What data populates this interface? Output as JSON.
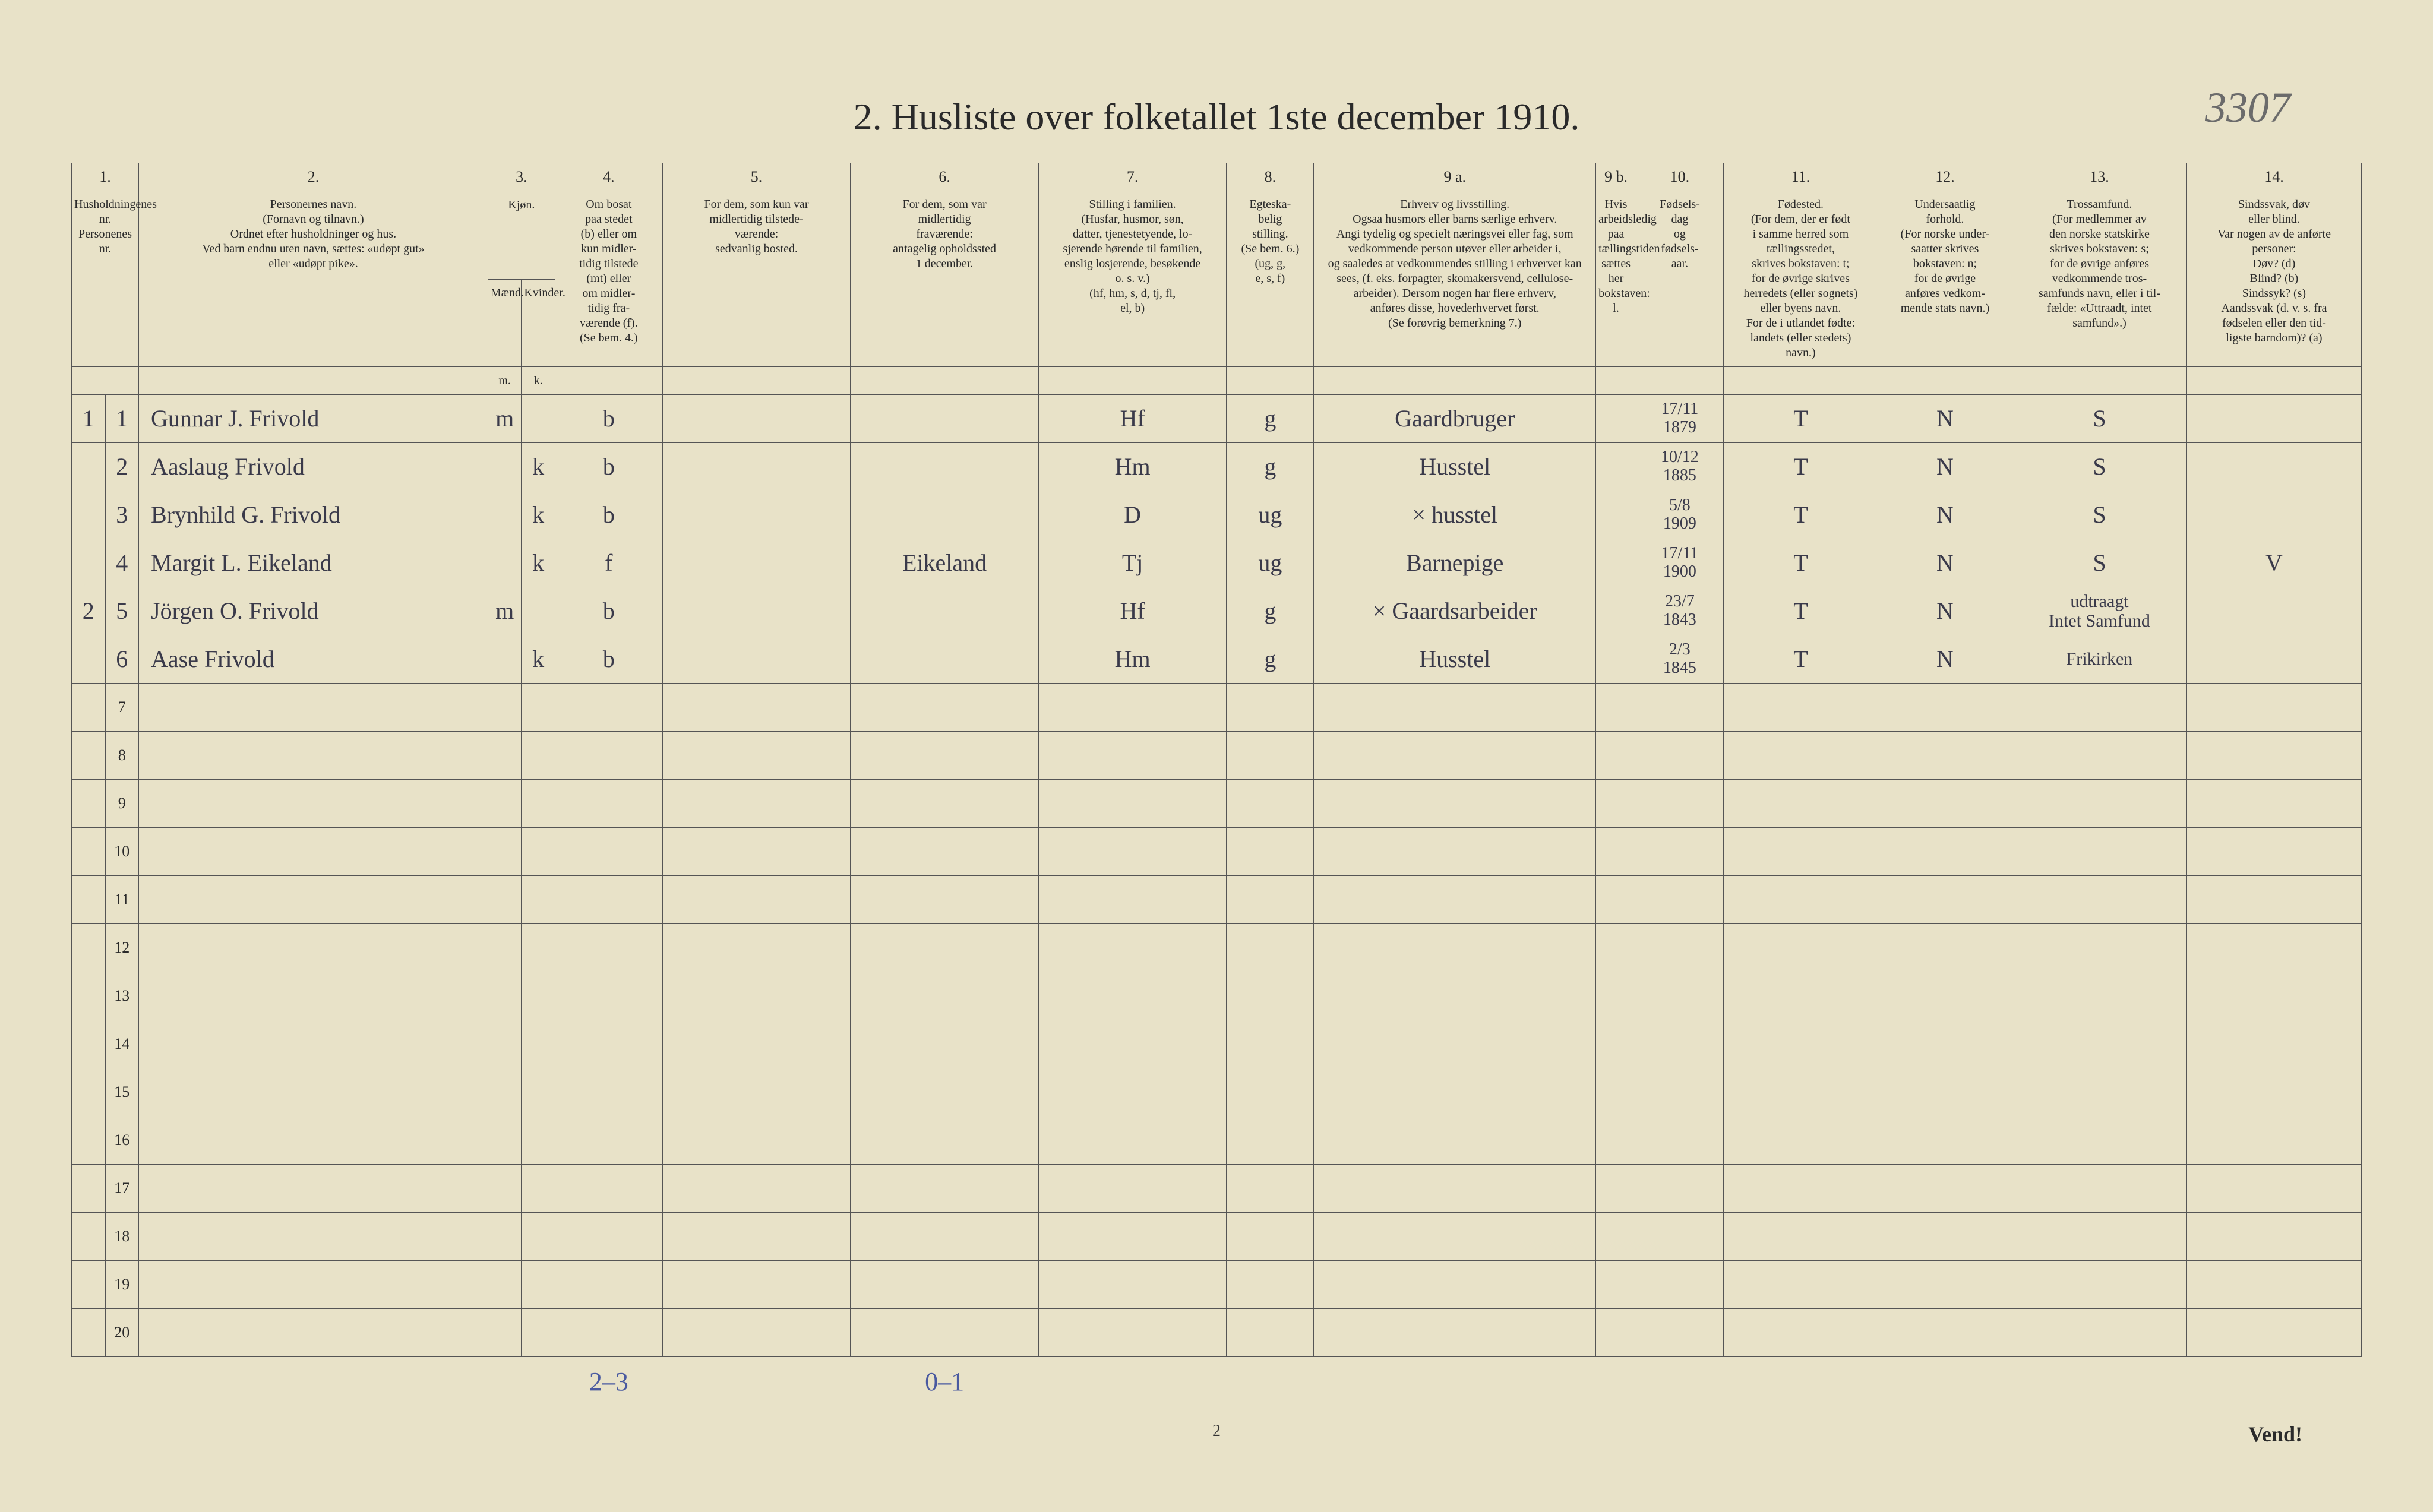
{
  "page_number_handwritten": "3307",
  "title": "2.  Husliste over folketallet 1ste december 1910.",
  "footer_page_number": "2",
  "vend_text": "Vend!",
  "column_numbers": [
    "1.",
    "2.",
    "3.",
    "4.",
    "5.",
    "6.",
    "7.",
    "8.",
    "9 a.",
    "9 b.",
    "10.",
    "11.",
    "12.",
    "13.",
    "14."
  ],
  "headers": {
    "c1": "Husholdningenes nr.\nPersonenes nr.",
    "c2": "Personernes navn.\n(Fornavn og tilnavn.)\nOrdnet efter husholdninger og hus.\nVed barn endnu uten navn, sættes: «udøpt gut»\neller «udøpt pike».",
    "c3": "Kjøn.",
    "c3m": "Mænd.",
    "c3k": "Kvinder.",
    "c4": "Om bosat\npaa stedet\n(b) eller om\nkun midler-\ntidig tilstede\n(mt) eller\nom midler-\ntidig fra-\nværende (f).\n(Se bem. 4.)",
    "c5": "For dem, som kun var\nmidlertidig tilstede-\nværende:\nsedvanlig bosted.",
    "c6": "For dem, som var\nmidlertidig\nfraværende:\nantagelig opholdssted\n1 december.",
    "c7": "Stilling i familien.\n(Husfar, husmor, søn,\ndatter, tjenestetyende, lo-\nsjerende hørende til familien,\nenslig losjerende, besøkende\no. s. v.)\n(hf, hm, s, d, tj, fl,\nel, b)",
    "c8": "Egteska-\nbelig\nstilling.\n(Se bem. 6.)\n(ug, g,\ne, s, f)",
    "c9a": "Erhverv og livsstilling.\nOgsaa husmors eller barns særlige erhverv.\nAngi tydelig og specielt næringsvei eller fag, som\nvedkommende person utøver eller arbeider i,\nog saaledes at vedkommendes stilling i erhvervet kan\nsees, (f. eks. forpagter, skomakersvend, cellulose-\narbeider). Dersom nogen har flere erhverv,\nanføres disse, hovederhvervet først.\n(Se forøvrig bemerkning 7.)",
    "c9b": "Hvis arbeidsledig\npaa tællingstiden sættes\nher bokstaven: l.",
    "c10": "Fødsels-\ndag\nog\nfødsels-\naar.",
    "c11": "Fødested.\n(For dem, der er født\ni samme herred som\ntællingsstedet,\nskrives bokstaven: t;\nfor de øvrige skrives\nherredets (eller sognets)\neller byens navn.\nFor de i utlandet fødte:\nlandets (eller stedets)\nnavn.)",
    "c12": "Undersaatlig\nforhold.\n(For norske under-\nsaatter skrives\nbokstaven: n;\nfor de øvrige\nanføres vedkom-\nmende stats navn.)",
    "c13": "Trossamfund.\n(For medlemmer av\nden norske statskirke\nskrives bokstaven: s;\nfor de øvrige anføres\nvedkommende tros-\nsamfunds navn, eller i til-\nfælde: «Uttraadt, intet\nsamfund».)",
    "c14": "Sindssvak, døv\neller blind.\nVar nogen av de anførte\npersoner:\nDøv?      (d)\nBlind?    (b)\nSindssyk? (s)\nAandssvak (d. v. s. fra\nfødselen eller den tid-\nligste barndom)? (a)"
  },
  "mk_row": {
    "m": "m.",
    "k": "k."
  },
  "rows": [
    {
      "hh": "1",
      "pn": "1",
      "name": "Gunnar J. Frivold",
      "m": "m",
      "k": "",
      "res": "b",
      "usual": "",
      "abs": "",
      "fam": "Hf",
      "mar": "g",
      "occ": "Gaardbruger",
      "b9": "",
      "birth": "17/11\n1879",
      "bplace": "T",
      "nat": "N",
      "rel": "S",
      "dis": ""
    },
    {
      "hh": "",
      "pn": "2",
      "name": "Aaslaug Frivold",
      "m": "",
      "k": "k",
      "res": "b",
      "usual": "",
      "abs": "",
      "fam": "Hm",
      "mar": "g",
      "occ": "Husstel",
      "b9": "",
      "birth": "10/12\n1885",
      "bplace": "T",
      "nat": "N",
      "rel": "S",
      "dis": ""
    },
    {
      "hh": "",
      "pn": "3",
      "name": "Brynhild G. Frivold",
      "m": "",
      "k": "k",
      "res": "b",
      "usual": "",
      "abs": "",
      "fam": "D",
      "mar": "ug",
      "occ": "× husstel",
      "b9": "",
      "birth": "5/8\n1909",
      "bplace": "T",
      "nat": "N",
      "rel": "S",
      "dis": ""
    },
    {
      "hh": "",
      "pn": "4",
      "name": "Margit L. Eikeland",
      "m": "",
      "k": "k",
      "res": "f",
      "usual": "",
      "abs": "Eikeland",
      "fam": "Tj",
      "mar": "ug",
      "occ": "Barnepige",
      "b9": "",
      "birth": "17/11\n1900",
      "bplace": "T",
      "nat": "N",
      "rel": "S",
      "dis": "V"
    },
    {
      "hh": "2",
      "pn": "5",
      "name": "Jörgen O. Frivold",
      "m": "m",
      "k": "",
      "res": "b",
      "usual": "",
      "abs": "",
      "fam": "Hf",
      "mar": "g",
      "occ": "× Gaardsarbeider",
      "b9": "",
      "birth": "23/7\n1843",
      "bplace": "T",
      "nat": "N",
      "rel": "udtraagt\nIntet Samfund",
      "dis": ""
    },
    {
      "hh": "",
      "pn": "6",
      "name": "Aase Frivold",
      "m": "",
      "k": "k",
      "res": "b",
      "usual": "",
      "abs": "",
      "fam": "Hm",
      "mar": "g",
      "occ": "Husstel",
      "b9": "",
      "birth": "2/3\n1845",
      "bplace": "T",
      "nat": "N",
      "rel": "Frikirken",
      "dis": ""
    }
  ],
  "empty_row_numbers": [
    "7",
    "8",
    "9",
    "10",
    "11",
    "12",
    "13",
    "14",
    "15",
    "16",
    "17",
    "18",
    "19",
    "20"
  ],
  "footer_annotations": {
    "left": "2–3",
    "mid": "0–1"
  },
  "colors": {
    "paper": "#e8e2c8",
    "ink": "#2a2a2a",
    "handwriting": "#3a3a4a",
    "pencil_blue": "#4a5aa0",
    "border": "#555555",
    "page_bg": "#1a1a1a"
  }
}
